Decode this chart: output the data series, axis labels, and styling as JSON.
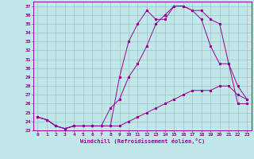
{
  "title": "",
  "xlabel": "Windchill (Refroidissement éolien,°C)",
  "background_color": "#c0e8e8",
  "grid_color": "#a0c0c0",
  "line_color": "#990099",
  "xlim": [
    -0.5,
    23.5
  ],
  "ylim": [
    23,
    37.5
  ],
  "yticks": [
    23,
    24,
    25,
    26,
    27,
    28,
    29,
    30,
    31,
    32,
    33,
    34,
    35,
    36,
    37
  ],
  "xticks": [
    0,
    1,
    2,
    3,
    4,
    5,
    6,
    7,
    8,
    9,
    10,
    11,
    12,
    13,
    14,
    15,
    16,
    17,
    18,
    19,
    20,
    21,
    22,
    23
  ],
  "curve1_x": [
    0,
    1,
    2,
    3,
    4,
    5,
    6,
    7,
    8,
    9,
    10,
    11,
    12,
    13,
    14,
    15,
    16,
    17,
    18,
    19,
    20,
    21,
    22,
    23
  ],
  "curve1_y": [
    24.5,
    24.2,
    23.5,
    23.2,
    23.5,
    23.5,
    23.5,
    23.5,
    23.5,
    29.0,
    33.0,
    35.0,
    36.5,
    35.5,
    35.5,
    37.0,
    37.0,
    36.5,
    36.5,
    35.5,
    35.0,
    30.5,
    28.0,
    26.5
  ],
  "curve2_x": [
    0,
    1,
    2,
    3,
    4,
    5,
    6,
    7,
    8,
    9,
    10,
    11,
    12,
    13,
    14,
    15,
    16,
    17,
    18,
    19,
    20,
    21,
    22,
    23
  ],
  "curve2_y": [
    24.5,
    24.2,
    23.5,
    23.2,
    23.5,
    23.5,
    23.5,
    23.5,
    25.5,
    26.5,
    29.0,
    30.5,
    32.5,
    35.0,
    36.0,
    37.0,
    37.0,
    36.5,
    35.5,
    32.5,
    30.5,
    30.5,
    26.0,
    26.0
  ],
  "curve3_x": [
    0,
    1,
    2,
    3,
    4,
    5,
    6,
    7,
    8,
    9,
    10,
    11,
    12,
    13,
    14,
    15,
    16,
    17,
    18,
    19,
    20,
    21,
    22,
    23
  ],
  "curve3_y": [
    24.5,
    24.2,
    23.5,
    23.2,
    23.5,
    23.5,
    23.5,
    23.5,
    23.5,
    23.5,
    24.0,
    24.5,
    25.0,
    25.5,
    26.0,
    26.5,
    27.0,
    27.5,
    27.5,
    27.5,
    28.0,
    28.0,
    27.0,
    26.5
  ]
}
